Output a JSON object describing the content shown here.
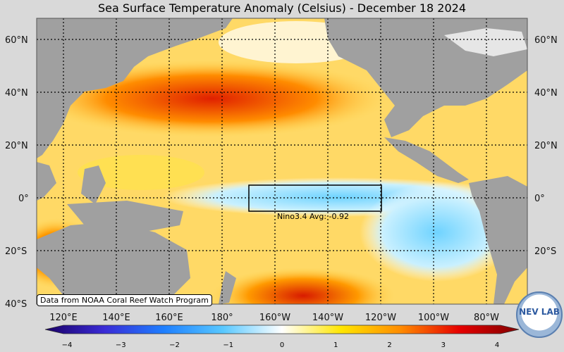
{
  "title": "Sea Surface Temperature Anomaly (Celsius) - December 18 2024",
  "lat_labels": [
    "60°N",
    "40°N",
    "20°N",
    "0°",
    "20°S",
    "40°S"
  ],
  "lon_labels": [
    "120°E",
    "140°E",
    "160°E",
    "180°",
    "160°W",
    "140°W",
    "120°W",
    "100°W",
    "80°W"
  ],
  "nino_label": "Nino3.4 Avg: -0.92",
  "credit": "Data from NOAA Coral Reef Watch Program",
  "colorbar": {
    "min": -4,
    "max": 4,
    "tick_labels": [
      "−4",
      "−3",
      "−2",
      "−1",
      "0",
      "1",
      "2",
      "3",
      "4"
    ],
    "colors": [
      "#1a0066",
      "#3a2bd6",
      "#1e7fff",
      "#58c8ff",
      "#ffffff",
      "#ffe600",
      "#ff8c00",
      "#e60000",
      "#800000"
    ]
  },
  "logo_text": "NEV LAB",
  "colors": {
    "land": "#a0a0a0",
    "ocean_warm": "#ffcc33",
    "ocean_cool": "#cfefff"
  }
}
